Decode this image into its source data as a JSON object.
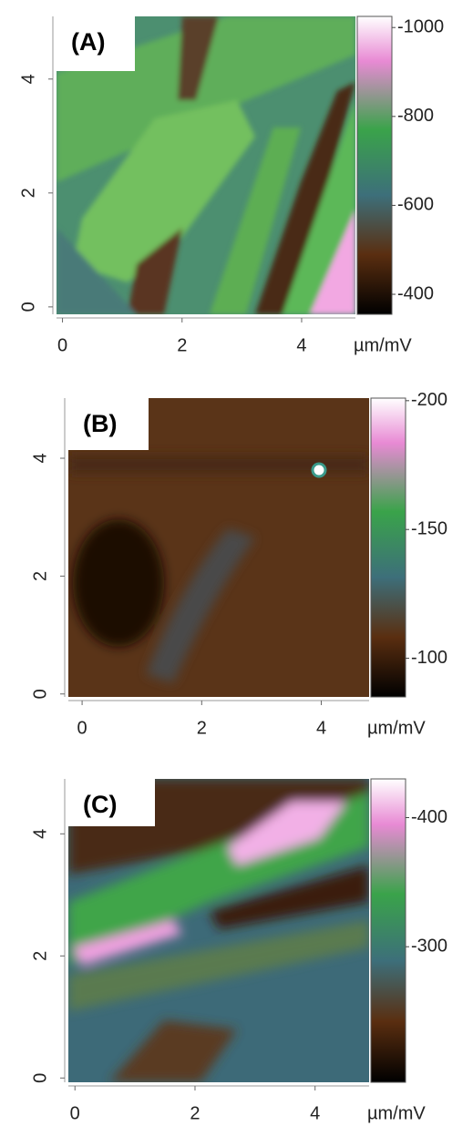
{
  "chart_data": [
    {
      "type": "heatmap",
      "title": "(A)",
      "x_label": "µm/mV",
      "xlim": [
        -0.1,
        4.9
      ],
      "xticks": [
        0,
        2,
        4
      ],
      "ylim": [
        -0.13,
        5.1
      ],
      "yticks": [
        0,
        2,
        4
      ],
      "zlim": [
        -1025,
        -355
      ],
      "zticks": [
        -1000,
        -800,
        -600,
        -400
      ]
    },
    {
      "type": "heatmap",
      "title": "(B)",
      "x_label": "µm/mV",
      "xlim": [
        -0.23,
        4.8
      ],
      "xticks": [
        0,
        2,
        4
      ],
      "ylim": [
        -0.05,
        5.02
      ],
      "yticks": [
        0,
        2,
        4
      ],
      "zlim": [
        -201,
        -85
      ],
      "zticks": [
        -200,
        -150,
        -100
      ]
    },
    {
      "type": "heatmap",
      "title": "(C)",
      "x_label": "µm/mV",
      "xlim": [
        -0.11,
        4.9
      ],
      "xticks": [
        0,
        2,
        4
      ],
      "ylim": [
        -0.07,
        4.9
      ],
      "yticks": [
        0,
        2,
        4
      ],
      "zlim": [
        -430,
        -195
      ],
      "zticks": [
        -400,
        -300
      ]
    }
  ]
}
